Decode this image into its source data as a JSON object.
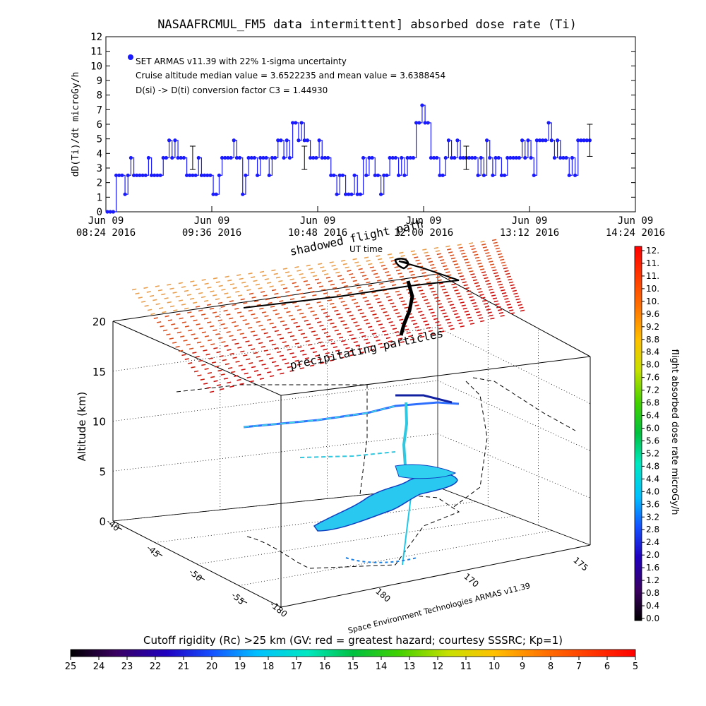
{
  "chart_data": [
    {
      "type": "scatter",
      "title": "NASAAFRCMUL_FM5 data intermittent] absorbed dose rate (Ti)",
      "ylabel": "dD(Ti)/dt microGy/h",
      "ylim": [
        0,
        12
      ],
      "yticks": [
        "0",
        "1",
        "2",
        "3",
        "4",
        "5",
        "6",
        "7",
        "8",
        "9",
        "10",
        "11",
        "12"
      ],
      "xticks": [
        {
          "day": "Jun 09",
          "time": "08:24 2016"
        },
        {
          "day": "Jun 09",
          "time": "09:36 2016"
        },
        {
          "day": "Jun 09",
          "time": "10:48 2016"
        },
        {
          "day": "Jun 09",
          "time": "12:00 2016"
        },
        {
          "day": "Jun 09",
          "time": "13:12 2016"
        },
        {
          "day": "Jun 09",
          "time": "14:24 2016"
        }
      ],
      "legend": [
        "SET ARMAS v11.39 with 22% 1-sigma uncertainty",
        "Cruise altitude median value = 3.6522235 and mean value = 3.6388454",
        "D(si) -> D(ti) conversion factor C3 = 1.44930"
      ],
      "legend_color": "#1a1aff",
      "x_unit": "minutes after 08:24",
      "series": [
        {
          "color": "#1a1aff",
          "points": [
            [
              1,
              0
            ],
            [
              3,
              0
            ],
            [
              5,
              0
            ],
            [
              7,
              2.5
            ],
            [
              9,
              2.5
            ],
            [
              11,
              2.5
            ],
            [
              13,
              1.2
            ],
            [
              15,
              2.5
            ],
            [
              17,
              3.7
            ],
            [
              19,
              2.5
            ],
            [
              21,
              2.5
            ],
            [
              23,
              2.5
            ],
            [
              25,
              2.5
            ],
            [
              27,
              2.5
            ],
            [
              29,
              3.7
            ],
            [
              31,
              2.5
            ],
            [
              33,
              2.5
            ],
            [
              35,
              2.5
            ],
            [
              37,
              2.5
            ],
            [
              39,
              3.7
            ],
            [
              41,
              3.7
            ],
            [
              43,
              4.9
            ],
            [
              45,
              3.7
            ],
            [
              47,
              4.9
            ],
            [
              49,
              3.7
            ],
            [
              51,
              3.7
            ],
            [
              53,
              3.7
            ],
            [
              55,
              2.5
            ],
            [
              57,
              2.5
            ],
            [
              59,
              2.5
            ],
            [
              61,
              2.5
            ],
            [
              63,
              3.7
            ],
            [
              65,
              2.5
            ],
            [
              67,
              2.5
            ],
            [
              69,
              2.5
            ],
            [
              71,
              2.5
            ],
            [
              73,
              1.2
            ],
            [
              75,
              1.2
            ],
            [
              77,
              2.5
            ],
            [
              79,
              3.7
            ],
            [
              81,
              3.7
            ],
            [
              83,
              3.7
            ],
            [
              85,
              3.7
            ],
            [
              87,
              4.9
            ],
            [
              89,
              3.7
            ],
            [
              91,
              3.7
            ],
            [
              93,
              1.2
            ],
            [
              95,
              2.5
            ],
            [
              97,
              3.7
            ],
            [
              99,
              3.7
            ],
            [
              101,
              3.7
            ],
            [
              103,
              2.5
            ],
            [
              105,
              3.7
            ],
            [
              107,
              3.7
            ],
            [
              109,
              3.7
            ],
            [
              111,
              2.5
            ],
            [
              113,
              3.7
            ],
            [
              115,
              3.7
            ],
            [
              117,
              4.9
            ],
            [
              119,
              4.9
            ],
            [
              121,
              3.7
            ],
            [
              123,
              4.9
            ],
            [
              125,
              3.7
            ],
            [
              127,
              6.1
            ],
            [
              129,
              6.1
            ],
            [
              131,
              4.9
            ],
            [
              133,
              6.1
            ],
            [
              135,
              4.9
            ],
            [
              137,
              4.9
            ],
            [
              139,
              3.7
            ],
            [
              141,
              3.7
            ],
            [
              143,
              3.7
            ],
            [
              145,
              4.9
            ],
            [
              147,
              3.7
            ],
            [
              149,
              3.7
            ],
            [
              151,
              3.7
            ],
            [
              153,
              2.5
            ],
            [
              155,
              2.5
            ],
            [
              157,
              1.2
            ],
            [
              159,
              2.5
            ],
            [
              161,
              2.5
            ],
            [
              163,
              1.2
            ],
            [
              165,
              1.2
            ],
            [
              167,
              1.2
            ],
            [
              169,
              2.5
            ],
            [
              171,
              1.2
            ],
            [
              173,
              1.2
            ],
            [
              175,
              3.7
            ],
            [
              177,
              2.5
            ],
            [
              179,
              3.7
            ],
            [
              181,
              3.7
            ],
            [
              183,
              2.5
            ],
            [
              185,
              2.5
            ],
            [
              187,
              1.2
            ],
            [
              189,
              2.5
            ],
            [
              191,
              2.5
            ],
            [
              193,
              3.7
            ],
            [
              195,
              3.7
            ],
            [
              197,
              3.7
            ],
            [
              199,
              2.5
            ],
            [
              201,
              3.7
            ],
            [
              203,
              2.5
            ],
            [
              205,
              3.7
            ],
            [
              207,
              3.7
            ],
            [
              209,
              3.7
            ],
            [
              211,
              6.1
            ],
            [
              213,
              6.1
            ],
            [
              215,
              7.3
            ],
            [
              217,
              6.1
            ],
            [
              219,
              6.1
            ],
            [
              221,
              3.7
            ],
            [
              223,
              3.7
            ],
            [
              225,
              3.7
            ],
            [
              227,
              2.5
            ],
            [
              229,
              2.5
            ],
            [
              231,
              3.7
            ],
            [
              233,
              4.9
            ],
            [
              235,
              3.7
            ],
            [
              237,
              3.7
            ],
            [
              239,
              4.9
            ],
            [
              241,
              3.7
            ],
            [
              243,
              3.7
            ],
            [
              245,
              3.7
            ],
            [
              247,
              3.7
            ],
            [
              249,
              3.7
            ],
            [
              251,
              3.7
            ],
            [
              253,
              2.5
            ],
            [
              255,
              3.7
            ],
            [
              257,
              2.5
            ],
            [
              259,
              4.9
            ],
            [
              261,
              3.7
            ],
            [
              263,
              2.5
            ],
            [
              265,
              3.7
            ],
            [
              267,
              3.7
            ],
            [
              269,
              2.5
            ],
            [
              271,
              2.5
            ],
            [
              273,
              3.7
            ],
            [
              275,
              3.7
            ],
            [
              277,
              3.7
            ],
            [
              279,
              3.7
            ],
            [
              281,
              3.7
            ],
            [
              283,
              4.9
            ],
            [
              285,
              3.7
            ],
            [
              287,
              4.9
            ],
            [
              289,
              3.7
            ],
            [
              291,
              2.5
            ],
            [
              293,
              4.9
            ],
            [
              295,
              4.9
            ],
            [
              297,
              4.9
            ],
            [
              299,
              4.9
            ],
            [
              301,
              6.1
            ],
            [
              303,
              4.9
            ],
            [
              305,
              3.7
            ],
            [
              307,
              4.9
            ],
            [
              309,
              3.7
            ],
            [
              311,
              3.7
            ],
            [
              313,
              3.7
            ],
            [
              315,
              2.5
            ],
            [
              317,
              3.7
            ],
            [
              319,
              2.5
            ],
            [
              321,
              4.9
            ],
            [
              323,
              4.9
            ],
            [
              325,
              4.9
            ],
            [
              327,
              4.9
            ],
            [
              329,
              4.9
            ]
          ]
        }
      ],
      "error_bars": [
        {
          "x": 59,
          "y": 3.7,
          "err": 0.8
        },
        {
          "x": 135,
          "y": 3.7,
          "err": 0.8
        },
        {
          "x": 245,
          "y": 3.7,
          "err": 0.8
        },
        {
          "x": 329,
          "y": 4.9,
          "err": 1.1
        }
      ]
    },
    {
      "type": "surface",
      "ylabel": "Altitude (km)",
      "zlim": [
        0,
        20
      ],
      "zticks": [
        "0",
        "5",
        "10",
        "15",
        "20"
      ],
      "lat_ticks": [
        "-40",
        "-45",
        "-50",
        "-55"
      ],
      "lon_ticks": [
        "-180",
        "180",
        "170",
        "175"
      ],
      "annotations": [
        "shadowed flight path",
        "UT time",
        "precipitating particles",
        "Space Environment Technologies ARMAS v11.39"
      ]
    },
    {
      "type": "colorbar",
      "label": "flight absorbed dose rate microGy/h",
      "ticks": [
        "0.0",
        "0.4",
        "0.8",
        "1.2",
        "1.6",
        "2.0",
        "2.4",
        "2.8",
        "3.2",
        "3.6",
        "4.0",
        "4.4",
        "4.8",
        "5.2",
        "5.6",
        "6.0",
        "6.4",
        "6.8",
        "7.2",
        "7.6",
        "8.0",
        "8.4",
        "8.8",
        "9.2",
        "9.6",
        "10.",
        "10.",
        "11.",
        "11.",
        "12."
      ]
    },
    {
      "type": "colorbar",
      "label": "Cutoff rigidity (Rc) >25 km (GV: red = greatest hazard; courtesy SSSRC; Kp=1)",
      "ticks": [
        "25",
        "24",
        "23",
        "22",
        "21",
        "20",
        "19",
        "18",
        "17",
        "16",
        "15",
        "14",
        "13",
        "12",
        "11",
        "10",
        "9",
        "8",
        "7",
        "6",
        "5"
      ]
    }
  ]
}
